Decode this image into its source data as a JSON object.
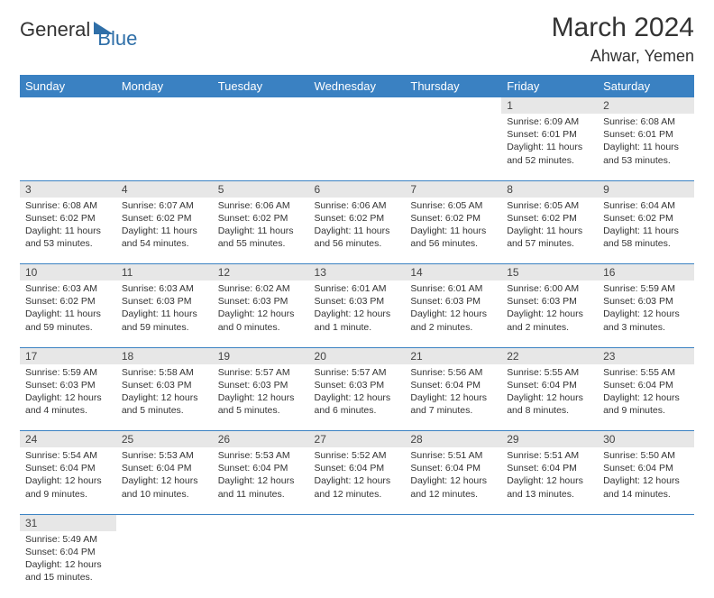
{
  "logo": {
    "general": "General",
    "blue": "Blue"
  },
  "title": "March 2024",
  "location": "Ahwar, Yemen",
  "colors": {
    "header_bg": "#3a81c2",
    "header_text": "#ffffff",
    "daynum_bg": "#e7e7e7",
    "row_divider": "#3a81c2",
    "logo_blue": "#2f6fa8",
    "text": "#333333"
  },
  "weekdays": [
    "Sunday",
    "Monday",
    "Tuesday",
    "Wednesday",
    "Thursday",
    "Friday",
    "Saturday"
  ],
  "weeks": [
    [
      null,
      null,
      null,
      null,
      null,
      {
        "n": "1",
        "sr": "Sunrise: 6:09 AM",
        "ss": "Sunset: 6:01 PM",
        "dl1": "Daylight: 11 hours",
        "dl2": "and 52 minutes."
      },
      {
        "n": "2",
        "sr": "Sunrise: 6:08 AM",
        "ss": "Sunset: 6:01 PM",
        "dl1": "Daylight: 11 hours",
        "dl2": "and 53 minutes."
      }
    ],
    [
      {
        "n": "3",
        "sr": "Sunrise: 6:08 AM",
        "ss": "Sunset: 6:02 PM",
        "dl1": "Daylight: 11 hours",
        "dl2": "and 53 minutes."
      },
      {
        "n": "4",
        "sr": "Sunrise: 6:07 AM",
        "ss": "Sunset: 6:02 PM",
        "dl1": "Daylight: 11 hours",
        "dl2": "and 54 minutes."
      },
      {
        "n": "5",
        "sr": "Sunrise: 6:06 AM",
        "ss": "Sunset: 6:02 PM",
        "dl1": "Daylight: 11 hours",
        "dl2": "and 55 minutes."
      },
      {
        "n": "6",
        "sr": "Sunrise: 6:06 AM",
        "ss": "Sunset: 6:02 PM",
        "dl1": "Daylight: 11 hours",
        "dl2": "and 56 minutes."
      },
      {
        "n": "7",
        "sr": "Sunrise: 6:05 AM",
        "ss": "Sunset: 6:02 PM",
        "dl1": "Daylight: 11 hours",
        "dl2": "and 56 minutes."
      },
      {
        "n": "8",
        "sr": "Sunrise: 6:05 AM",
        "ss": "Sunset: 6:02 PM",
        "dl1": "Daylight: 11 hours",
        "dl2": "and 57 minutes."
      },
      {
        "n": "9",
        "sr": "Sunrise: 6:04 AM",
        "ss": "Sunset: 6:02 PM",
        "dl1": "Daylight: 11 hours",
        "dl2": "and 58 minutes."
      }
    ],
    [
      {
        "n": "10",
        "sr": "Sunrise: 6:03 AM",
        "ss": "Sunset: 6:02 PM",
        "dl1": "Daylight: 11 hours",
        "dl2": "and 59 minutes."
      },
      {
        "n": "11",
        "sr": "Sunrise: 6:03 AM",
        "ss": "Sunset: 6:03 PM",
        "dl1": "Daylight: 11 hours",
        "dl2": "and 59 minutes."
      },
      {
        "n": "12",
        "sr": "Sunrise: 6:02 AM",
        "ss": "Sunset: 6:03 PM",
        "dl1": "Daylight: 12 hours",
        "dl2": "and 0 minutes."
      },
      {
        "n": "13",
        "sr": "Sunrise: 6:01 AM",
        "ss": "Sunset: 6:03 PM",
        "dl1": "Daylight: 12 hours",
        "dl2": "and 1 minute."
      },
      {
        "n": "14",
        "sr": "Sunrise: 6:01 AM",
        "ss": "Sunset: 6:03 PM",
        "dl1": "Daylight: 12 hours",
        "dl2": "and 2 minutes."
      },
      {
        "n": "15",
        "sr": "Sunrise: 6:00 AM",
        "ss": "Sunset: 6:03 PM",
        "dl1": "Daylight: 12 hours",
        "dl2": "and 2 minutes."
      },
      {
        "n": "16",
        "sr": "Sunrise: 5:59 AM",
        "ss": "Sunset: 6:03 PM",
        "dl1": "Daylight: 12 hours",
        "dl2": "and 3 minutes."
      }
    ],
    [
      {
        "n": "17",
        "sr": "Sunrise: 5:59 AM",
        "ss": "Sunset: 6:03 PM",
        "dl1": "Daylight: 12 hours",
        "dl2": "and 4 minutes."
      },
      {
        "n": "18",
        "sr": "Sunrise: 5:58 AM",
        "ss": "Sunset: 6:03 PM",
        "dl1": "Daylight: 12 hours",
        "dl2": "and 5 minutes."
      },
      {
        "n": "19",
        "sr": "Sunrise: 5:57 AM",
        "ss": "Sunset: 6:03 PM",
        "dl1": "Daylight: 12 hours",
        "dl2": "and 5 minutes."
      },
      {
        "n": "20",
        "sr": "Sunrise: 5:57 AM",
        "ss": "Sunset: 6:03 PM",
        "dl1": "Daylight: 12 hours",
        "dl2": "and 6 minutes."
      },
      {
        "n": "21",
        "sr": "Sunrise: 5:56 AM",
        "ss": "Sunset: 6:04 PM",
        "dl1": "Daylight: 12 hours",
        "dl2": "and 7 minutes."
      },
      {
        "n": "22",
        "sr": "Sunrise: 5:55 AM",
        "ss": "Sunset: 6:04 PM",
        "dl1": "Daylight: 12 hours",
        "dl2": "and 8 minutes."
      },
      {
        "n": "23",
        "sr": "Sunrise: 5:55 AM",
        "ss": "Sunset: 6:04 PM",
        "dl1": "Daylight: 12 hours",
        "dl2": "and 9 minutes."
      }
    ],
    [
      {
        "n": "24",
        "sr": "Sunrise: 5:54 AM",
        "ss": "Sunset: 6:04 PM",
        "dl1": "Daylight: 12 hours",
        "dl2": "and 9 minutes."
      },
      {
        "n": "25",
        "sr": "Sunrise: 5:53 AM",
        "ss": "Sunset: 6:04 PM",
        "dl1": "Daylight: 12 hours",
        "dl2": "and 10 minutes."
      },
      {
        "n": "26",
        "sr": "Sunrise: 5:53 AM",
        "ss": "Sunset: 6:04 PM",
        "dl1": "Daylight: 12 hours",
        "dl2": "and 11 minutes."
      },
      {
        "n": "27",
        "sr": "Sunrise: 5:52 AM",
        "ss": "Sunset: 6:04 PM",
        "dl1": "Daylight: 12 hours",
        "dl2": "and 12 minutes."
      },
      {
        "n": "28",
        "sr": "Sunrise: 5:51 AM",
        "ss": "Sunset: 6:04 PM",
        "dl1": "Daylight: 12 hours",
        "dl2": "and 12 minutes."
      },
      {
        "n": "29",
        "sr": "Sunrise: 5:51 AM",
        "ss": "Sunset: 6:04 PM",
        "dl1": "Daylight: 12 hours",
        "dl2": "and 13 minutes."
      },
      {
        "n": "30",
        "sr": "Sunrise: 5:50 AM",
        "ss": "Sunset: 6:04 PM",
        "dl1": "Daylight: 12 hours",
        "dl2": "and 14 minutes."
      }
    ],
    [
      {
        "n": "31",
        "sr": "Sunrise: 5:49 AM",
        "ss": "Sunset: 6:04 PM",
        "dl1": "Daylight: 12 hours",
        "dl2": "and 15 minutes."
      },
      null,
      null,
      null,
      null,
      null,
      null
    ]
  ]
}
